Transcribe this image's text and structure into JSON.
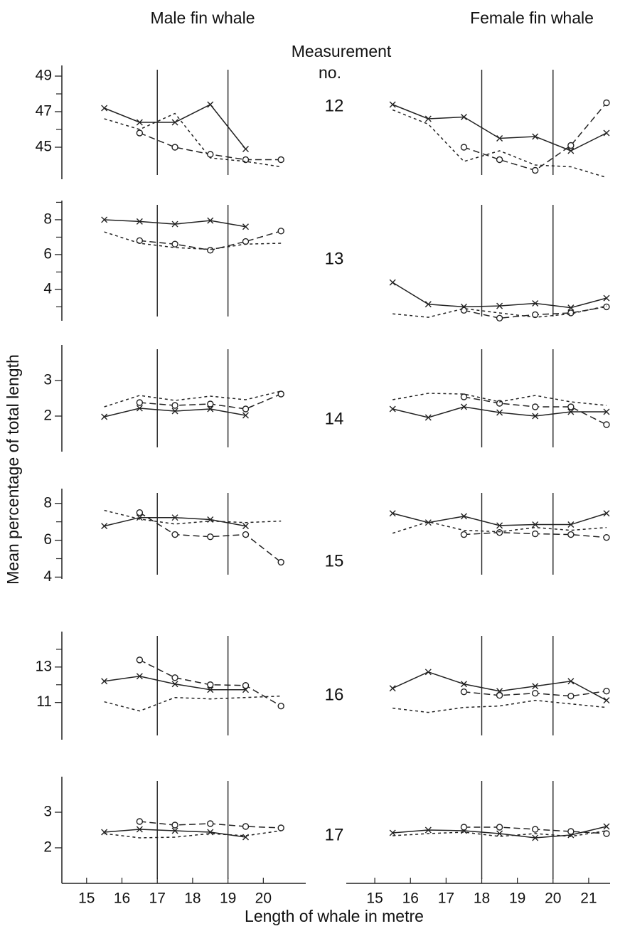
{
  "figure": {
    "column_titles": [
      "Male fin whale",
      "Female fin whale"
    ],
    "measurement_header": [
      "Measurement",
      "no."
    ],
    "measurements": [
      "12",
      "13",
      "14",
      "15",
      "16",
      "17"
    ],
    "ylabel": "Mean percentage of total length",
    "xlabel": "Length of whale in metre"
  },
  "chart_data": [
    {
      "type": "line",
      "x": [
        15.5,
        16.5,
        17.5,
        18.5,
        19.5,
        20.5
      ],
      "xlim": [
        14.3,
        21.2
      ],
      "ylim": [
        43.2,
        49.6
      ],
      "yticks": [
        45,
        47,
        49
      ],
      "yminor": [
        46,
        48
      ],
      "vlines": [
        17,
        19
      ],
      "series": [
        {
          "marker": "x",
          "dash": "solid",
          "color": "#222",
          "values": [
            47.2,
            46.4,
            46.4,
            47.4,
            44.9,
            null
          ]
        },
        {
          "marker": "o",
          "dash": "long",
          "color": "#222",
          "values": [
            null,
            45.8,
            45.0,
            44.6,
            44.3,
            44.3
          ]
        },
        {
          "marker": "none",
          "dash": "short",
          "color": "#222",
          "values": [
            46.6,
            46.0,
            46.9,
            44.4,
            44.2,
            43.9
          ]
        }
      ]
    },
    {
      "type": "line",
      "x": [
        15.5,
        16.5,
        17.5,
        18.5,
        19.5,
        20.5,
        21.5
      ],
      "xlim": [
        14.2,
        21.6
      ],
      "ylim": [
        43.2,
        49.6
      ],
      "vlines": [
        18,
        20
      ],
      "series": [
        {
          "marker": "x",
          "dash": "solid",
          "color": "#222",
          "values": [
            47.4,
            46.6,
            46.7,
            45.5,
            45.6,
            44.8,
            45.8
          ]
        },
        {
          "marker": "o",
          "dash": "long",
          "color": "#222",
          "values": [
            null,
            null,
            45.0,
            44.3,
            43.7,
            45.1,
            47.5
          ]
        },
        {
          "marker": "none",
          "dash": "short",
          "color": "#222",
          "values": [
            47.1,
            46.3,
            44.2,
            44.8,
            44.0,
            43.9,
            43.3
          ]
        }
      ]
    },
    {
      "type": "line",
      "x": [
        15.5,
        16.5,
        17.5,
        18.5,
        19.5,
        20.5
      ],
      "xlim": [
        14.3,
        21.2
      ],
      "ylim": [
        2.2,
        9.1
      ],
      "yticks": [
        4,
        6,
        8
      ],
      "yminor": [
        3,
        5,
        7,
        9
      ],
      "vlines": [
        17,
        19
      ],
      "series": [
        {
          "marker": "x",
          "dash": "solid",
          "color": "#222",
          "values": [
            8.0,
            7.9,
            7.75,
            7.95,
            7.6,
            null
          ]
        },
        {
          "marker": "o",
          "dash": "long",
          "color": "#222",
          "values": [
            null,
            6.8,
            6.6,
            6.25,
            6.75,
            7.35
          ]
        },
        {
          "marker": "none",
          "dash": "short",
          "color": "#222",
          "values": [
            7.3,
            6.65,
            6.4,
            6.3,
            6.6,
            6.65
          ]
        }
      ]
    },
    {
      "type": "line",
      "x": [
        15.5,
        16.5,
        17.5,
        18.5,
        19.5,
        20.5,
        21.5
      ],
      "xlim": [
        14.2,
        21.6
      ],
      "ylim": [
        2.2,
        9.1
      ],
      "vlines": [
        18,
        20
      ],
      "series": [
        {
          "marker": "x",
          "dash": "solid",
          "color": "#222",
          "values": [
            4.4,
            3.15,
            3.0,
            3.05,
            3.2,
            2.95,
            3.5
          ]
        },
        {
          "marker": "o",
          "dash": "long",
          "color": "#222",
          "values": [
            null,
            null,
            2.8,
            2.35,
            2.55,
            2.65,
            3.0
          ]
        },
        {
          "marker": "none",
          "dash": "short",
          "color": "#222",
          "values": [
            2.6,
            2.4,
            2.9,
            2.65,
            2.4,
            2.6,
            3.05
          ]
        }
      ]
    },
    {
      "type": "line",
      "x": [
        15.5,
        16.5,
        17.5,
        18.5,
        19.5,
        20.5
      ],
      "xlim": [
        14.3,
        21.2
      ],
      "ylim": [
        1.0,
        4.0
      ],
      "yticks": [
        2,
        3
      ],
      "vlines": [
        17,
        19
      ],
      "series": [
        {
          "marker": "x",
          "dash": "solid",
          "color": "#222",
          "values": [
            1.98,
            2.22,
            2.14,
            2.2,
            2.02,
            null
          ]
        },
        {
          "marker": "o",
          "dash": "long",
          "color": "#222",
          "values": [
            null,
            2.38,
            2.3,
            2.34,
            2.2,
            2.62
          ]
        },
        {
          "marker": "none",
          "dash": "short",
          "color": "#222",
          "values": [
            2.26,
            2.58,
            2.44,
            2.56,
            2.46,
            2.7
          ]
        }
      ]
    },
    {
      "type": "line",
      "x": [
        15.5,
        16.5,
        17.5,
        18.5,
        19.5,
        20.5,
        21.5
      ],
      "xlim": [
        14.2,
        21.6
      ],
      "ylim": [
        1.0,
        4.0
      ],
      "vlines": [
        18,
        20
      ],
      "series": [
        {
          "marker": "x",
          "dash": "solid",
          "color": "#222",
          "values": [
            2.2,
            1.96,
            2.26,
            2.1,
            2.0,
            2.12,
            2.12
          ]
        },
        {
          "marker": "o",
          "dash": "long",
          "color": "#222",
          "values": [
            null,
            null,
            2.54,
            2.36,
            2.26,
            2.26,
            1.76
          ]
        },
        {
          "marker": "none",
          "dash": "short",
          "color": "#222",
          "values": [
            2.46,
            2.64,
            2.62,
            2.4,
            2.58,
            2.4,
            2.3
          ]
        }
      ]
    },
    {
      "type": "line",
      "x": [
        15.5,
        16.5,
        17.5,
        18.5,
        19.5,
        20.5
      ],
      "xlim": [
        14.3,
        21.2
      ],
      "ylim": [
        3.9,
        8.8
      ],
      "yticks": [
        4,
        6,
        8
      ],
      "yminor": [
        5,
        7
      ],
      "vlines": [
        17,
        19
      ],
      "series": [
        {
          "marker": "x",
          "dash": "solid",
          "color": "#222",
          "values": [
            6.77,
            7.23,
            7.23,
            7.12,
            6.77,
            null
          ]
        },
        {
          "marker": "o",
          "dash": "long",
          "color": "#222",
          "values": [
            null,
            7.5,
            6.31,
            6.19,
            6.31,
            4.81
          ]
        },
        {
          "marker": "none",
          "dash": "short",
          "color": "#222",
          "values": [
            7.62,
            7.15,
            6.88,
            7.04,
            6.96,
            7.04
          ]
        }
      ]
    },
    {
      "type": "line",
      "x": [
        15.5,
        16.5,
        17.5,
        18.5,
        19.5,
        20.5,
        21.5
      ],
      "xlim": [
        14.2,
        21.6
      ],
      "ylim": [
        3.9,
        8.8
      ],
      "vlines": [
        18,
        20
      ],
      "series": [
        {
          "marker": "x",
          "dash": "solid",
          "color": "#222",
          "values": [
            7.46,
            6.96,
            7.3,
            6.8,
            6.85,
            6.85,
            7.46
          ]
        },
        {
          "marker": "o",
          "dash": "long",
          "color": "#222",
          "values": [
            null,
            null,
            6.31,
            6.42,
            6.35,
            6.31,
            6.15
          ]
        },
        {
          "marker": "none",
          "dash": "short",
          "color": "#222",
          "values": [
            6.38,
            7.0,
            6.54,
            6.46,
            6.69,
            6.54,
            6.69
          ]
        }
      ]
    },
    {
      "type": "line",
      "x": [
        15.5,
        16.5,
        17.5,
        18.5,
        19.5,
        20.5
      ],
      "xlim": [
        14.3,
        21.2
      ],
      "ylim": [
        8.9,
        15.0
      ],
      "yticks": [
        11,
        13
      ],
      "yminor": [
        12,
        14
      ],
      "vlines": [
        17,
        19
      ],
      "series": [
        {
          "marker": "x",
          "dash": "solid",
          "color": "#222",
          "values": [
            12.2,
            12.48,
            12.04,
            11.72,
            11.72,
            null
          ]
        },
        {
          "marker": "o",
          "dash": "long",
          "color": "#222",
          "values": [
            null,
            13.4,
            12.4,
            12.0,
            11.96,
            10.8
          ]
        },
        {
          "marker": "none",
          "dash": "short",
          "color": "#222",
          "values": [
            11.04,
            10.52,
            11.28,
            11.2,
            11.28,
            11.36
          ]
        }
      ]
    },
    {
      "type": "line",
      "x": [
        15.5,
        16.5,
        17.5,
        18.5,
        19.5,
        20.5,
        21.5
      ],
      "xlim": [
        14.2,
        21.6
      ],
      "ylim": [
        8.9,
        15.0
      ],
      "vlines": [
        18,
        20
      ],
      "series": [
        {
          "marker": "x",
          "dash": "solid",
          "color": "#222",
          "values": [
            11.8,
            12.72,
            12.04,
            11.64,
            11.92,
            12.2,
            11.12
          ]
        },
        {
          "marker": "o",
          "dash": "long",
          "color": "#222",
          "values": [
            null,
            null,
            11.6,
            11.4,
            11.52,
            11.36,
            11.64
          ]
        },
        {
          "marker": "none",
          "dash": "short",
          "color": "#222",
          "values": [
            10.68,
            10.44,
            10.72,
            10.8,
            11.12,
            10.92,
            10.72
          ]
        }
      ]
    },
    {
      "type": "line",
      "x": [
        15.5,
        16.5,
        17.5,
        18.5,
        19.5,
        20.5
      ],
      "xlim": [
        14.3,
        21.2
      ],
      "xticks": [
        15,
        16,
        17,
        18,
        19,
        20
      ],
      "ylim": [
        1.0,
        4.0
      ],
      "yticks": [
        2,
        3
      ],
      "vlines": [
        17,
        19
      ],
      "series": [
        {
          "marker": "x",
          "dash": "solid",
          "color": "#222",
          "values": [
            2.44,
            2.52,
            2.48,
            2.44,
            2.3,
            null
          ]
        },
        {
          "marker": "o",
          "dash": "long",
          "color": "#222",
          "values": [
            null,
            2.74,
            2.64,
            2.68,
            2.6,
            2.56
          ]
        },
        {
          "marker": "none",
          "dash": "short",
          "color": "#222",
          "values": [
            2.4,
            2.28,
            2.3,
            2.4,
            2.34,
            2.48
          ]
        }
      ]
    },
    {
      "type": "line",
      "x": [
        15.5,
        16.5,
        17.5,
        18.5,
        19.5,
        20.5,
        21.5
      ],
      "xlim": [
        14.2,
        21.6
      ],
      "xticks": [
        15,
        16,
        17,
        18,
        19,
        20,
        21
      ],
      "ylim": [
        1.0,
        4.0
      ],
      "vlines": [
        18,
        20
      ],
      "series": [
        {
          "marker": "x",
          "dash": "solid",
          "color": "#222",
          "values": [
            2.42,
            2.5,
            2.48,
            2.4,
            2.28,
            2.36,
            2.6
          ]
        },
        {
          "marker": "o",
          "dash": "long",
          "color": "#222",
          "values": [
            null,
            null,
            2.58,
            2.58,
            2.52,
            2.46,
            2.4
          ]
        },
        {
          "marker": "none",
          "dash": "short",
          "color": "#222",
          "values": [
            2.34,
            2.4,
            2.44,
            2.32,
            2.4,
            2.32,
            2.48
          ]
        }
      ]
    }
  ]
}
